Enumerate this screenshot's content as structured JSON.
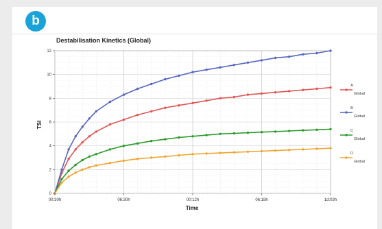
{
  "badge": {
    "letter": "b"
  },
  "chart_data": {
    "type": "line",
    "title": "Destabilisation Kinetics (Global)",
    "xlabel": "Time",
    "ylabel": "TSI",
    "xlim": [
      0,
      20
    ],
    "ylim": [
      0,
      12
    ],
    "x_ticks": [
      {
        "v": 0,
        "label": "00:30h"
      },
      {
        "v": 5,
        "label": "06:30h"
      },
      {
        "v": 10,
        "label": "00:12h"
      },
      {
        "v": 15,
        "label": "06:18h"
      },
      {
        "v": 20,
        "label": "1d:03h"
      }
    ],
    "y_ticks": [
      0,
      2,
      4,
      6,
      8,
      10,
      12
    ],
    "grid": true,
    "legend_position": "right",
    "x": [
      0,
      0.5,
      1,
      1.5,
      2,
      2.5,
      3,
      4,
      5,
      6,
      7,
      8,
      9,
      10,
      11,
      12,
      13,
      14,
      15,
      16,
      17,
      18,
      19,
      20
    ],
    "series": [
      {
        "name": "A",
        "sub": "Global",
        "color": "#e05555",
        "values": [
          0,
          1.7,
          2.9,
          3.7,
          4.3,
          4.8,
          5.2,
          5.8,
          6.2,
          6.6,
          6.9,
          7.2,
          7.4,
          7.6,
          7.8,
          8.0,
          8.1,
          8.3,
          8.4,
          8.5,
          8.6,
          8.7,
          8.8,
          8.9
        ]
      },
      {
        "name": "B",
        "sub": "Global",
        "color": "#5566c0",
        "values": [
          0,
          2.0,
          3.7,
          4.8,
          5.6,
          6.3,
          6.9,
          7.7,
          8.3,
          8.8,
          9.2,
          9.6,
          9.9,
          10.2,
          10.4,
          10.6,
          10.8,
          11.0,
          11.2,
          11.4,
          11.5,
          11.7,
          11.8,
          12.0
        ]
      },
      {
        "name": "C",
        "sub": "Global",
        "color": "#2a9a2a",
        "values": [
          0,
          1.2,
          1.9,
          2.4,
          2.8,
          3.1,
          3.3,
          3.7,
          4.0,
          4.2,
          4.4,
          4.55,
          4.7,
          4.8,
          4.9,
          5.0,
          5.05,
          5.1,
          5.15,
          5.2,
          5.25,
          5.3,
          5.35,
          5.4
        ]
      },
      {
        "name": "D",
        "sub": "Global",
        "color": "#f0a530",
        "values": [
          0,
          0.9,
          1.4,
          1.75,
          2.0,
          2.2,
          2.35,
          2.55,
          2.75,
          2.9,
          3.0,
          3.1,
          3.2,
          3.3,
          3.35,
          3.4,
          3.45,
          3.5,
          3.55,
          3.6,
          3.65,
          3.7,
          3.75,
          3.8
        ]
      }
    ]
  }
}
